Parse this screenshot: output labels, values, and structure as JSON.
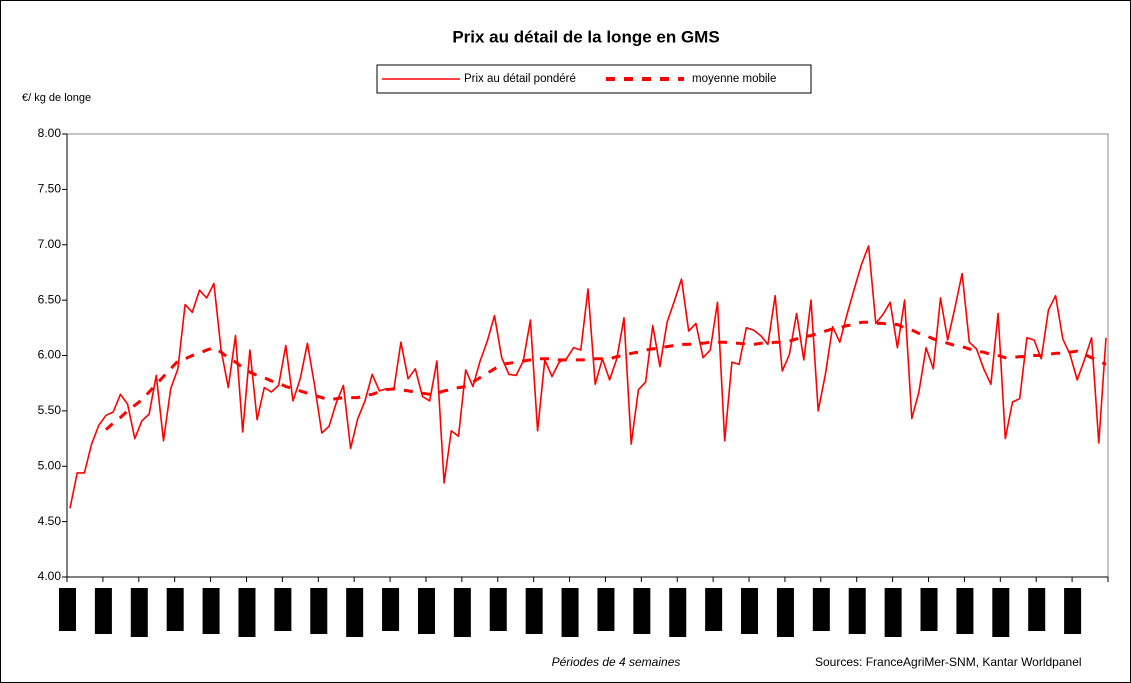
{
  "chart_data": {
    "type": "line",
    "title": "Prix au détail de la longe en GMS",
    "y_label": "€/ kg de longe",
    "x_label": "Périodes de 4 semaines",
    "source": "Sources: FranceAgriMer-SNM, Kantar Worldpanel",
    "ylim": [
      4,
      8
    ],
    "yticks": [
      {
        "value": 4,
        "label": "4.00"
      },
      {
        "value": 4.5,
        "label": "4.50"
      },
      {
        "value": 5,
        "label": "5.00"
      },
      {
        "value": 5.5,
        "label": "5.50"
      },
      {
        "value": 6,
        "label": "6.00"
      },
      {
        "value": 6.5,
        "label": "6.50"
      },
      {
        "value": 7,
        "label": "7.00"
      },
      {
        "value": 7.5,
        "label": "7.50"
      },
      {
        "value": 8,
        "label": "8.00"
      }
    ],
    "legend": "top",
    "series": [
      {
        "name": "Prix au détail pondéré",
        "color": "#ff0000",
        "style": "solid",
        "values": [
          4.62,
          4.94,
          4.94,
          5.2,
          5.37,
          5.46,
          5.49,
          5.65,
          5.56,
          5.25,
          5.41,
          5.47,
          5.82,
          5.23,
          5.7,
          5.88,
          6.46,
          6.39,
          6.59,
          6.52,
          6.65,
          6.05,
          5.71,
          6.18,
          5.31,
          6.05,
          5.42,
          5.71,
          5.67,
          5.73,
          6.09,
          5.59,
          5.79,
          6.11,
          5.73,
          5.3,
          5.36,
          5.57,
          5.73,
          5.16,
          5.43,
          5.59,
          5.83,
          5.68,
          5.7,
          5.69,
          6.12,
          5.79,
          5.88,
          5.63,
          5.59,
          5.95,
          4.85,
          5.32,
          5.27,
          5.87,
          5.72,
          5.95,
          6.13,
          6.36,
          5.98,
          5.83,
          5.82,
          5.95,
          6.32,
          5.32,
          5.96,
          5.81,
          5.94,
          5.97,
          6.07,
          6.05,
          6.6,
          5.74,
          5.97,
          5.78,
          5.97,
          6.34,
          5.2,
          5.69,
          5.76,
          6.27,
          5.9,
          6.3,
          6.49,
          6.69,
          6.22,
          6.29,
          5.98,
          6.05,
          6.48,
          5.23,
          5.94,
          5.92,
          6.25,
          6.23,
          6.18,
          6.1,
          6.54,
          5.86,
          6.01,
          6.38,
          5.96,
          6.5,
          5.5,
          5.83,
          6.26,
          6.12,
          6.37,
          6.6,
          6.82,
          6.99,
          6.29,
          6.37,
          6.48,
          6.07,
          6.5,
          5.43,
          5.67,
          6.07,
          5.88,
          6.52,
          6.14,
          6.43,
          6.74,
          6.12,
          6.06,
          5.88,
          5.74,
          6.38,
          5.25,
          5.58,
          5.61,
          6.16,
          6.14,
          5.97,
          6.41,
          6.54,
          6.15,
          6.01,
          5.78,
          5.96,
          6.16,
          5.21,
          6.16
        ]
      },
      {
        "name": "moyenne mobile",
        "color": "#ff0000",
        "style": "dashed",
        "values": [
          null,
          null,
          null,
          null,
          null,
          5.33,
          5.39,
          5.44,
          5.5,
          5.55,
          5.6,
          5.67,
          5.74,
          5.81,
          5.88,
          5.95,
          5.97,
          6.0,
          6.02,
          6.05,
          6.07,
          6.03,
          5.98,
          5.94,
          5.89,
          5.85,
          5.82,
          5.8,
          5.77,
          5.75,
          5.72,
          5.7,
          5.68,
          5.66,
          5.64,
          5.62,
          5.6,
          5.61,
          5.62,
          5.62,
          5.62,
          5.64,
          5.65,
          5.67,
          5.69,
          5.7,
          5.69,
          5.68,
          5.67,
          5.66,
          5.65,
          5.66,
          5.68,
          5.69,
          5.71,
          5.72,
          5.76,
          5.8,
          5.84,
          5.88,
          5.92,
          5.93,
          5.94,
          5.95,
          5.96,
          5.97,
          5.97,
          5.97,
          5.96,
          5.96,
          5.96,
          5.96,
          5.96,
          5.97,
          5.97,
          5.97,
          5.99,
          6.0,
          6.02,
          6.03,
          6.05,
          6.06,
          6.07,
          6.08,
          6.09,
          6.1,
          6.1,
          6.11,
          6.11,
          6.12,
          6.12,
          6.12,
          6.11,
          6.11,
          6.1,
          6.1,
          6.11,
          6.11,
          6.12,
          6.12,
          6.13,
          6.15,
          6.17,
          6.18,
          6.2,
          6.22,
          6.24,
          6.25,
          6.27,
          6.28,
          6.3,
          6.3,
          6.29,
          6.29,
          6.28,
          6.28,
          6.25,
          6.23,
          6.2,
          6.18,
          6.15,
          6.13,
          6.11,
          6.09,
          6.08,
          6.06,
          6.04,
          6.03,
          6.01,
          6.0,
          5.98,
          5.98,
          5.99,
          5.99,
          6.0,
          6.0,
          6.01,
          6.02,
          6.02,
          6.03,
          6.04,
          6.01,
          5.98,
          5.95,
          5.92
        ]
      }
    ]
  }
}
